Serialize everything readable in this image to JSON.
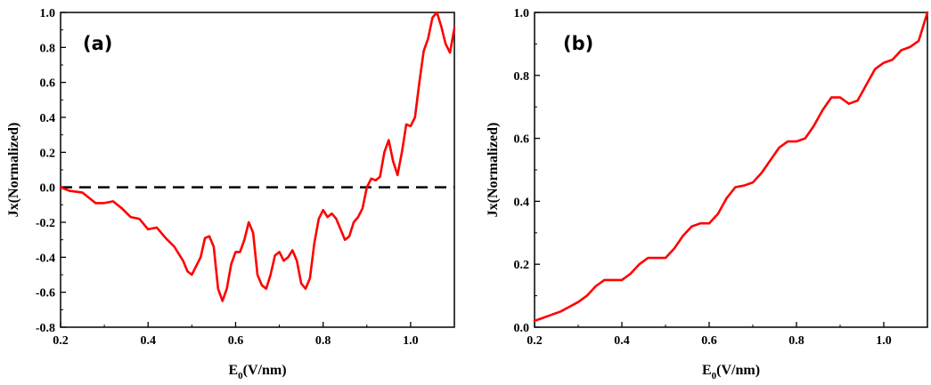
{
  "chart_data": [
    {
      "type": "line",
      "panel_label": "(a)",
      "xlabel": "E",
      "xlabel_sub": "0",
      "xlabel_suffix": "(V/nm)",
      "ylabel": "Jx(Normalized)",
      "xlim": [
        0.2,
        1.1
      ],
      "ylim": [
        -0.8,
        1.0
      ],
      "xticks": [
        0.2,
        0.4,
        0.6,
        0.8,
        1.0
      ],
      "xtick_labels": [
        "0.2",
        "0.4",
        "0.6",
        "0.8",
        "1.0"
      ],
      "yticks": [
        -0.8,
        -0.6,
        -0.4,
        -0.2,
        0.0,
        0.2,
        0.4,
        0.6,
        0.8,
        1.0
      ],
      "ytick_labels": [
        "-0.8",
        "-0.6",
        "-0.4",
        "-0.2",
        "0.0",
        "0.2",
        "0.4",
        "0.6",
        "0.8",
        "1.0"
      ],
      "reference_line": {
        "y": 0.0,
        "style": "dashed",
        "color": "#000000"
      },
      "series": [
        {
          "color": "#ff0000",
          "x": [
            0.2,
            0.22,
            0.25,
            0.28,
            0.3,
            0.32,
            0.34,
            0.36,
            0.38,
            0.4,
            0.42,
            0.44,
            0.46,
            0.48,
            0.49,
            0.5,
            0.52,
            0.53,
            0.54,
            0.55,
            0.56,
            0.57,
            0.58,
            0.59,
            0.6,
            0.61,
            0.62,
            0.63,
            0.64,
            0.65,
            0.66,
            0.67,
            0.68,
            0.69,
            0.7,
            0.71,
            0.72,
            0.73,
            0.74,
            0.75,
            0.76,
            0.77,
            0.78,
            0.79,
            0.8,
            0.81,
            0.82,
            0.83,
            0.84,
            0.85,
            0.86,
            0.87,
            0.88,
            0.89,
            0.9,
            0.91,
            0.92,
            0.93,
            0.94,
            0.95,
            0.96,
            0.97,
            0.98,
            0.99,
            1.0,
            1.01,
            1.02,
            1.03,
            1.04,
            1.05,
            1.06,
            1.07,
            1.08,
            1.09,
            1.1
          ],
          "y": [
            0.0,
            -0.02,
            -0.03,
            -0.09,
            -0.09,
            -0.08,
            -0.12,
            -0.17,
            -0.18,
            -0.24,
            -0.23,
            -0.29,
            -0.34,
            -0.42,
            -0.48,
            -0.5,
            -0.4,
            -0.29,
            -0.28,
            -0.34,
            -0.58,
            -0.65,
            -0.58,
            -0.44,
            -0.37,
            -0.37,
            -0.3,
            -0.2,
            -0.26,
            -0.5,
            -0.56,
            -0.58,
            -0.5,
            -0.39,
            -0.37,
            -0.42,
            -0.4,
            -0.36,
            -0.42,
            -0.55,
            -0.58,
            -0.52,
            -0.32,
            -0.18,
            -0.13,
            -0.17,
            -0.15,
            -0.18,
            -0.24,
            -0.3,
            -0.28,
            -0.2,
            -0.17,
            -0.12,
            0.0,
            0.05,
            0.04,
            0.06,
            0.2,
            0.27,
            0.15,
            0.07,
            0.2,
            0.36,
            0.35,
            0.4,
            0.6,
            0.78,
            0.85,
            0.97,
            1.0,
            0.92,
            0.82,
            0.77,
            0.91
          ]
        }
      ]
    },
    {
      "type": "line",
      "panel_label": "(b)",
      "xlabel": "E",
      "xlabel_sub": "0",
      "xlabel_suffix": "(V/nm)",
      "ylabel": "Jx(Normalized)",
      "xlim": [
        0.2,
        1.1
      ],
      "ylim": [
        0.0,
        1.0
      ],
      "xticks": [
        0.2,
        0.4,
        0.6,
        0.8,
        1.0
      ],
      "xtick_labels": [
        "0.2",
        "0.4",
        "0.6",
        "0.8",
        "1.0"
      ],
      "yticks": [
        0.0,
        0.2,
        0.4,
        0.6,
        0.8,
        1.0
      ],
      "ytick_labels": [
        "0.0",
        "0.2",
        "0.4",
        "0.6",
        "0.8",
        "1.0"
      ],
      "series": [
        {
          "color": "#ff0000",
          "x": [
            0.2,
            0.22,
            0.24,
            0.26,
            0.28,
            0.3,
            0.32,
            0.34,
            0.36,
            0.38,
            0.4,
            0.42,
            0.44,
            0.46,
            0.48,
            0.5,
            0.52,
            0.54,
            0.56,
            0.58,
            0.6,
            0.62,
            0.64,
            0.66,
            0.68,
            0.7,
            0.72,
            0.74,
            0.76,
            0.78,
            0.8,
            0.82,
            0.84,
            0.86,
            0.88,
            0.9,
            0.92,
            0.94,
            0.96,
            0.98,
            1.0,
            1.02,
            1.04,
            1.06,
            1.08,
            1.1
          ],
          "y": [
            0.02,
            0.03,
            0.04,
            0.05,
            0.065,
            0.08,
            0.1,
            0.13,
            0.15,
            0.15,
            0.15,
            0.17,
            0.2,
            0.22,
            0.22,
            0.22,
            0.25,
            0.29,
            0.32,
            0.33,
            0.33,
            0.36,
            0.41,
            0.445,
            0.45,
            0.46,
            0.49,
            0.53,
            0.57,
            0.59,
            0.59,
            0.6,
            0.64,
            0.69,
            0.73,
            0.73,
            0.71,
            0.72,
            0.77,
            0.82,
            0.84,
            0.85,
            0.88,
            0.89,
            0.91,
            1.0
          ]
        }
      ]
    }
  ]
}
